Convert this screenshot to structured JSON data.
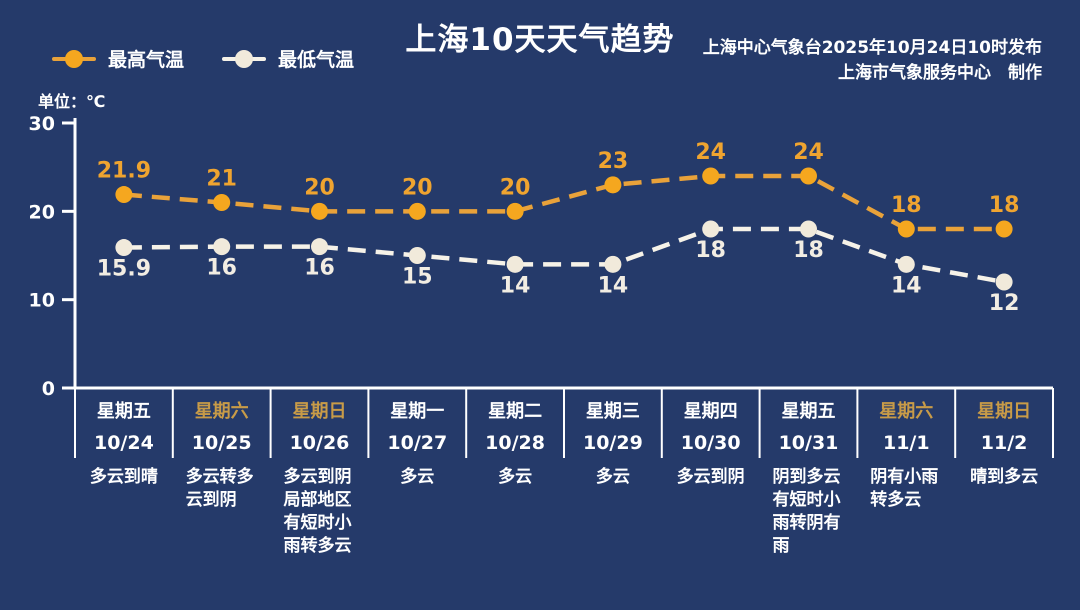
{
  "title": "上海10天天气趋势",
  "publisher": {
    "line1": "上海中心气象台2025年10月24日10时发布",
    "line2": "上海市气象服务中心　制作"
  },
  "unit_label": "单位：℃",
  "legend": {
    "max_label": "最高气温",
    "min_label": "最低气温"
  },
  "colors": {
    "background": "#253A6A",
    "max_line": "#E9A23A",
    "max_marker": "#F5A71F",
    "max_value_text": "#EFA430",
    "min_line": "#F6F2E8",
    "min_marker": "#F1EADB",
    "min_value_text": "#F2EDE3",
    "axis": "#FFFFFF",
    "text": "#FFFFFF",
    "weekend_text": "#C89B48"
  },
  "chart_data": {
    "type": "line",
    "title": "上海10天天气趋势",
    "ylabel": "单位：℃",
    "ylim": [
      0,
      30
    ],
    "yticks": [
      0,
      10,
      20,
      30
    ],
    "grid": false,
    "legend_position": "top-left",
    "line_style": "dashed",
    "categories": [
      "10/24",
      "10/25",
      "10/26",
      "10/27",
      "10/28",
      "10/29",
      "10/30",
      "10/31",
      "11/1",
      "11/2"
    ],
    "series": [
      {
        "name": "最高气温",
        "values": [
          21.9,
          21,
          20,
          20,
          20,
          23,
          24,
          24,
          18,
          18
        ]
      },
      {
        "name": "最低气温",
        "values": [
          15.9,
          16,
          16,
          15,
          14,
          14,
          18,
          18,
          14,
          12
        ]
      }
    ]
  },
  "days": [
    {
      "weekday": "星期五",
      "date": "10/24",
      "weather": "多云到晴",
      "weekend": false
    },
    {
      "weekday": "星期六",
      "date": "10/25",
      "weather": "多云转多云到阴",
      "weekend": true
    },
    {
      "weekday": "星期日",
      "date": "10/26",
      "weather": "多云到阴局部地区有短时小雨转多云",
      "weekend": true
    },
    {
      "weekday": "星期一",
      "date": "10/27",
      "weather": "多云",
      "weekend": false
    },
    {
      "weekday": "星期二",
      "date": "10/28",
      "weather": "多云",
      "weekend": false
    },
    {
      "weekday": "星期三",
      "date": "10/29",
      "weather": "多云",
      "weekend": false
    },
    {
      "weekday": "星期四",
      "date": "10/30",
      "weather": "多云到阴",
      "weekend": false
    },
    {
      "weekday": "星期五",
      "date": "10/31",
      "weather": "阴到多云有短时小雨转阴有雨",
      "weekend": false
    },
    {
      "weekday": "星期六",
      "date": "11/1",
      "weather": "阴有小雨转多云",
      "weekend": true
    },
    {
      "weekday": "星期日",
      "date": "11/2",
      "weather": "晴到多云",
      "weekend": true
    }
  ]
}
